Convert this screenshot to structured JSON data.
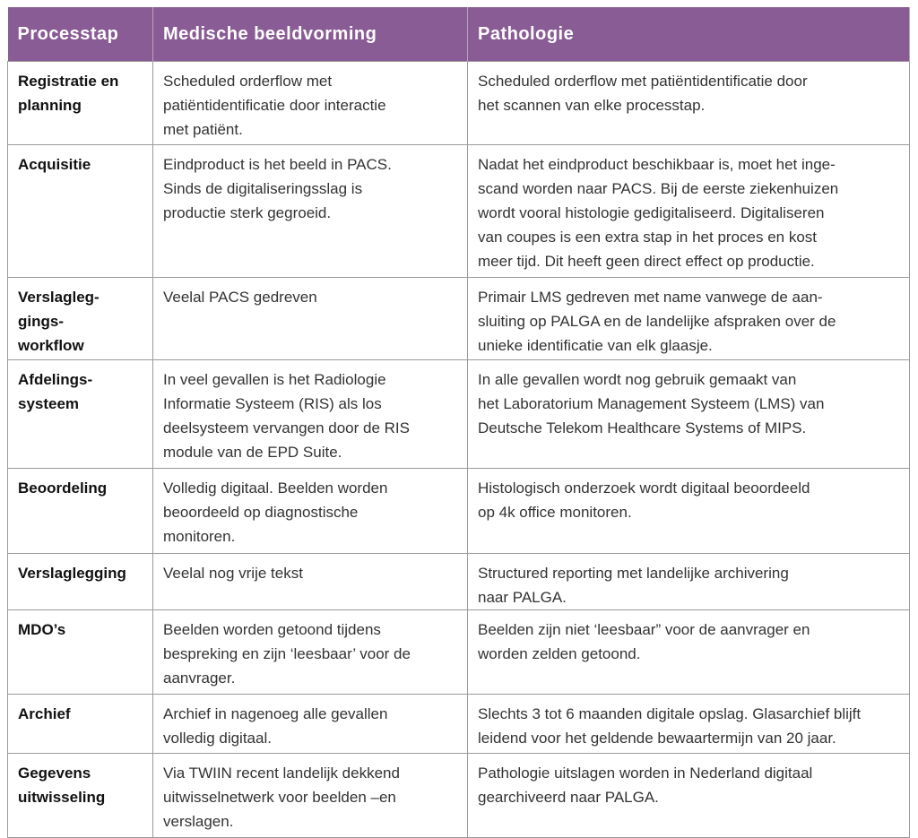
{
  "table": {
    "header": [
      "Processtap",
      "Medische beeldvorming",
      "Pathologie"
    ],
    "rows": [
      [
        [
          "Registratie en",
          "planning"
        ],
        [
          "Scheduled orderflow met",
          "patiëntidentificatie door interactie",
          "met patiënt."
        ],
        [
          "Scheduled orderflow met patiëntidentificatie door",
          "het scannen van elke processtap."
        ]
      ],
      [
        [
          "Acquisitie"
        ],
        [
          "Eindproduct is het beeld in PACS.",
          "Sinds de digitaliseringsslag is",
          "productie sterk gegroeid."
        ],
        [
          "Nadat het eindproduct beschikbaar is, moet het inge-",
          "scand worden naar PACS. Bij de eerste ziekenhuizen",
          "wordt vooral histologie gedigitaliseerd. Digitaliseren",
          "van coupes is een extra stap in het proces en kost",
          "meer tijd. Dit heeft geen direct effect op productie."
        ]
      ],
      [
        [
          "Verslagleg-",
          "gings-",
          "workflow"
        ],
        [
          "Veelal PACS gedreven"
        ],
        [
          "Primair LMS gedreven met name vanwege de aan-",
          "sluiting op PALGA en de landelijke afspraken over de",
          "unieke identificatie van elk glaasje."
        ]
      ],
      [
        [
          "Afdelings-",
          "systeem"
        ],
        [
          "In veel gevallen is het Radiologie",
          "Informatie Systeem (RIS) als los",
          "deelsysteem vervangen door de RIS",
          "module van de EPD Suite."
        ],
        [
          "In alle gevallen wordt nog gebruik gemaakt van",
          "het Laboratorium Management Systeem (LMS) van",
          "Deutsche Telekom Healthcare Systems of MIPS."
        ]
      ],
      [
        [
          "Beoordeling"
        ],
        [
          "Volledig digitaal. Beelden worden",
          "beoordeeld op diagnostische",
          "monitoren."
        ],
        [
          "Histologisch onderzoek wordt digitaal beoordeeld",
          "op 4k office monitoren."
        ]
      ],
      [
        [
          "Verslaglegging"
        ],
        [
          "Veelal nog vrije tekst"
        ],
        [
          "Structured reporting met landelijke archivering",
          "naar PALGA."
        ]
      ],
      [
        [
          "MDO’s"
        ],
        [
          "Beelden worden getoond tijdens",
          "bespreking en zijn ‘leesbaar’ voor de",
          "aanvrager."
        ],
        [
          "Beelden zijn niet ‘leesbaar” voor de aanvrager en",
          "worden zelden getoond."
        ]
      ],
      [
        [
          "Archief"
        ],
        [
          "Archief in nagenoeg alle gevallen",
          "volledig digitaal."
        ],
        [
          "Slechts 3 tot 6 maanden digitale opslag. Glasarchief blijft",
          "leidend voor het geldende bewaartermijn van 20 jaar."
        ]
      ],
      [
        [
          "Gegevens",
          "uitwisseling"
        ],
        [
          "Via TWIIN recent landelijk dekkend",
          "uitwisselnetwerk voor beelden –en",
          "verslagen."
        ],
        [
          "Pathologie uitslagen worden in Nederland digitaal",
          "gearchiveerd naar PALGA."
        ]
      ]
    ]
  }
}
